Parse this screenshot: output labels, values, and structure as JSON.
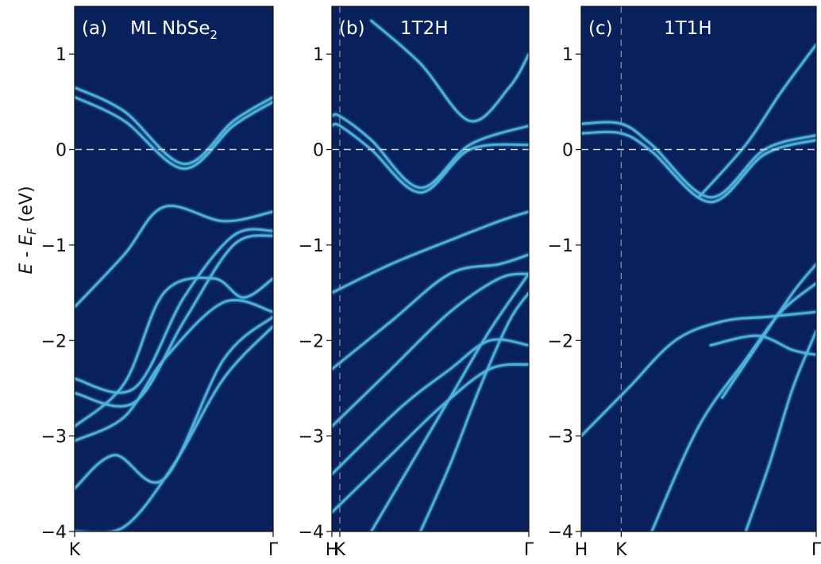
{
  "figure": {
    "ylabel": {
      "e1": "E",
      "dash": " - ",
      "e2": "E",
      "sub": "F",
      "unit": " (eV)"
    }
  },
  "colors": {
    "background": "#08205c",
    "band": "#4fb6e0",
    "band_bright": "#d8f2c0",
    "dashed": "#cfd6e6"
  },
  "chart_data": [
    {
      "type": "line",
      "panel": "(a)",
      "title_main": "ML NbSe",
      "title_sub": "2",
      "ylim": [
        -4,
        1.5
      ],
      "yticks": [
        -4,
        -3,
        -2,
        -1,
        0,
        1
      ],
      "xlim": [
        0,
        1
      ],
      "xticks": [
        {
          "x": 0,
          "label": "K"
        },
        {
          "x": 1,
          "label": "Γ"
        }
      ],
      "vlines": [],
      "fermi_level": 0,
      "series": [
        {
          "x": [
            0,
            0.25,
            0.55,
            0.8,
            1
          ],
          "y": [
            0.65,
            0.4,
            -0.15,
            0.3,
            0.55
          ]
        },
        {
          "x": [
            0,
            0.25,
            0.55,
            0.8,
            1
          ],
          "y": [
            0.55,
            0.3,
            -0.2,
            0.25,
            0.5
          ]
        },
        {
          "x": [
            0,
            0.25,
            0.45,
            0.75,
            1
          ],
          "y": [
            -1.65,
            -1.1,
            -0.6,
            -0.75,
            -0.65
          ]
        },
        {
          "x": [
            0,
            0.3,
            0.55,
            0.8,
            1
          ],
          "y": [
            -2.4,
            -2.5,
            -1.55,
            -0.9,
            -0.85
          ]
        },
        {
          "x": [
            0,
            0.3,
            0.55,
            0.8,
            1
          ],
          "y": [
            -2.55,
            -2.65,
            -1.8,
            -1.0,
            -0.9
          ]
        },
        {
          "x": [
            0,
            0.25,
            0.45,
            0.7,
            0.85,
            1
          ],
          "y": [
            -2.9,
            -2.45,
            -1.5,
            -1.35,
            -1.55,
            -1.35
          ]
        },
        {
          "x": [
            0,
            0.25,
            0.45,
            0.75,
            1
          ],
          "y": [
            -3.05,
            -2.8,
            -2.2,
            -1.6,
            -1.7
          ]
        },
        {
          "x": [
            0,
            0.2,
            0.45,
            0.75,
            1
          ],
          "y": [
            -3.55,
            -3.2,
            -3.45,
            -2.2,
            -1.75
          ]
        },
        {
          "x": [
            0,
            0.25,
            0.5,
            0.75,
            1
          ],
          "y": [
            -4.0,
            -3.95,
            -3.3,
            -2.4,
            -1.85
          ]
        }
      ]
    },
    {
      "type": "line",
      "panel": "(b)",
      "title_main": "1T2H",
      "title_sub": "",
      "ylim": [
        -4,
        1.5
      ],
      "yticks": [
        -4,
        -3,
        -2,
        -1,
        0,
        1
      ],
      "xlim": [
        0,
        1
      ],
      "xticks": [
        {
          "x": 0,
          "label": "H"
        },
        {
          "x": 0.04,
          "label": "K"
        },
        {
          "x": 1,
          "label": "Γ"
        }
      ],
      "vlines": [
        0.04
      ],
      "fermi_level": 0,
      "series": [
        {
          "x": [
            0,
            0.04,
            0.2,
            0.45,
            0.7,
            1
          ],
          "y": [
            0.35,
            0.35,
            0.1,
            -0.4,
            0.05,
            0.25
          ]
        },
        {
          "x": [
            0,
            0.04,
            0.2,
            0.45,
            0.7,
            1
          ],
          "y": [
            0.25,
            0.25,
            0.0,
            -0.45,
            0.0,
            0.05
          ]
        },
        {
          "x": [
            0.2,
            0.45,
            0.7,
            0.9,
            1
          ],
          "y": [
            1.35,
            0.9,
            0.3,
            0.65,
            1.0
          ]
        },
        {
          "x": [
            0,
            0.3,
            0.6,
            0.85,
            1
          ],
          "y": [
            -1.5,
            -1.2,
            -0.95,
            -0.75,
            -0.65
          ]
        },
        {
          "x": [
            0,
            0.3,
            0.6,
            0.85,
            1
          ],
          "y": [
            -2.3,
            -1.8,
            -1.3,
            -1.2,
            -1.1
          ]
        },
        {
          "x": [
            0,
            0.3,
            0.6,
            0.85,
            1
          ],
          "y": [
            -2.9,
            -2.3,
            -1.7,
            -1.35,
            -1.3
          ]
        },
        {
          "x": [
            0,
            0.35,
            0.6,
            0.8,
            1
          ],
          "y": [
            -3.4,
            -2.7,
            -2.3,
            -2.0,
            -2.05
          ]
        },
        {
          "x": [
            0,
            0.3,
            0.55,
            0.8,
            1
          ],
          "y": [
            -3.8,
            -3.2,
            -2.7,
            -2.3,
            -2.25
          ]
        },
        {
          "x": [
            0.2,
            0.4,
            0.6,
            0.8,
            1
          ],
          "y": [
            -4.0,
            -3.3,
            -2.6,
            -1.9,
            -1.3
          ]
        },
        {
          "x": [
            0.45,
            0.6,
            0.75,
            0.9,
            1
          ],
          "y": [
            -4.0,
            -3.3,
            -2.5,
            -1.8,
            -1.5
          ]
        }
      ]
    },
    {
      "type": "line",
      "panel": "(c)",
      "title_main": "1T1H",
      "title_sub": "",
      "ylim": [
        -4,
        1.5
      ],
      "yticks": [
        -4,
        -3,
        -2,
        -1,
        0,
        1
      ],
      "xlim": [
        0,
        1
      ],
      "xticks": [
        {
          "x": 0,
          "label": "H"
        },
        {
          "x": 0.17,
          "label": "K"
        },
        {
          "x": 1,
          "label": "Γ"
        }
      ],
      "vlines": [
        0.17
      ],
      "fermi_level": 0,
      "series": [
        {
          "x": [
            0,
            0.17,
            0.3,
            0.55,
            0.78,
            1
          ],
          "y": [
            0.27,
            0.27,
            0.05,
            -0.5,
            0.0,
            0.15
          ]
        },
        {
          "x": [
            0,
            0.17,
            0.3,
            0.55,
            0.78,
            1
          ],
          "y": [
            0.17,
            0.17,
            -0.02,
            -0.55,
            -0.05,
            0.1
          ]
        },
        {
          "x": [
            0.5,
            0.7,
            0.85,
            1
          ],
          "y": [
            -0.5,
            0.05,
            0.6,
            1.1
          ]
        },
        {
          "x": [
            0.6,
            0.75,
            0.9,
            1
          ],
          "y": [
            -2.6,
            -2.05,
            -1.5,
            -1.2
          ]
        },
        {
          "x": [
            0.55,
            0.75,
            0.9,
            1
          ],
          "y": [
            -2.05,
            -1.95,
            -2.1,
            -2.15
          ]
        },
        {
          "x": [
            0.3,
            0.5,
            0.7,
            0.85,
            1
          ],
          "y": [
            -4.0,
            -2.9,
            -2.2,
            -1.7,
            -1.4
          ]
        },
        {
          "x": [
            0.7,
            0.8,
            0.9,
            1
          ],
          "y": [
            -4.0,
            -3.3,
            -2.5,
            -1.9
          ]
        },
        {
          "x": [
            0,
            0.2,
            0.4,
            0.6,
            0.8,
            1
          ],
          "y": [
            -3.0,
            -2.5,
            -2.0,
            -1.8,
            -1.75,
            -1.7
          ]
        }
      ]
    }
  ]
}
